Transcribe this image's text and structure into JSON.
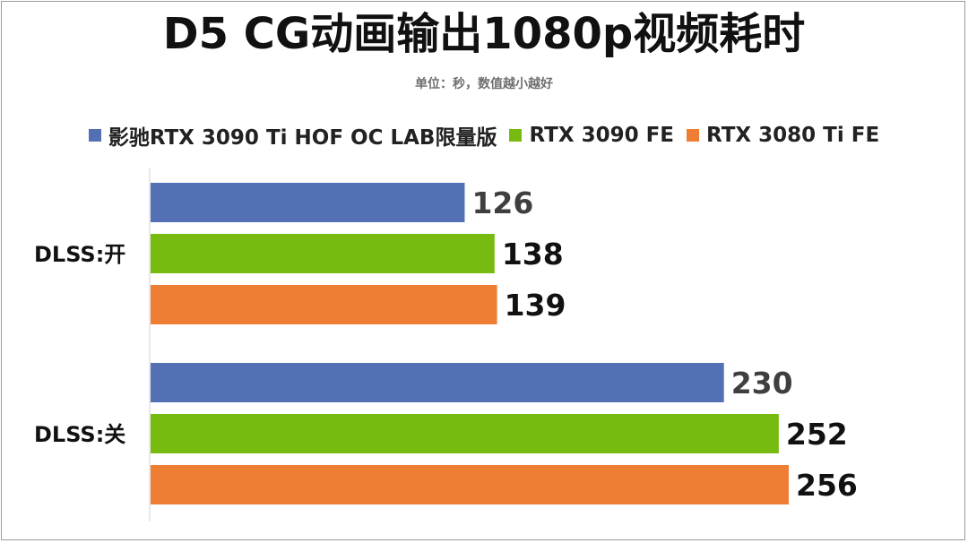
{
  "chart_data": {
    "type": "bar",
    "orientation": "horizontal",
    "title": "D5 CG动画输出1080p视频耗时",
    "subtitle": "单位：秒，数值越小越好",
    "categories": [
      "DLSS:开",
      "DLSS:关"
    ],
    "series": [
      {
        "name": "影驰RTX 3090 Ti HOF OC LAB限量版",
        "color": "#5470b5",
        "values": [
          126,
          230
        ]
      },
      {
        "name": "RTX 3090 FE",
        "color": "#77bb11",
        "values": [
          138,
          252
        ]
      },
      {
        "name": "RTX 3080 Ti FE",
        "color": "#ee7e33",
        "values": [
          139,
          256
        ]
      }
    ],
    "xlim": [
      0,
      256
    ],
    "legend_position": "top",
    "grid": false
  }
}
